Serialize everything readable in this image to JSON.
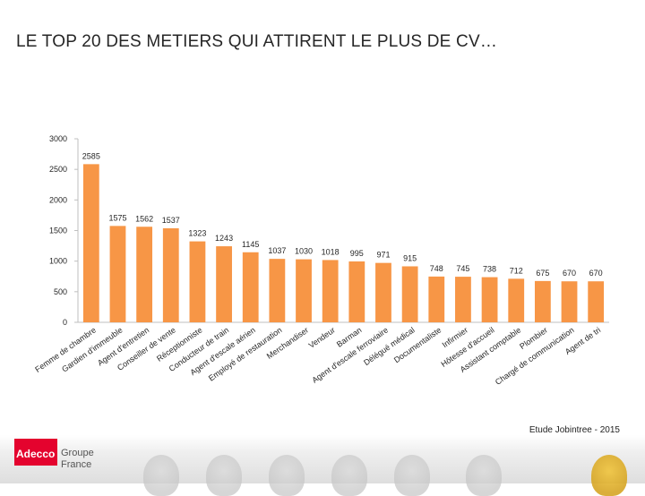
{
  "slide": {
    "title": "LE TOP 20 DES METIERS QUI ATTIRENT LE PLUS DE CV…",
    "source": "Etude Jobintree - 2015"
  },
  "logo": {
    "brand": "Adecco",
    "group": "Groupe",
    "country": "France"
  },
  "colors": {
    "bar": "#f79646",
    "axis": "#bfbfbf",
    "text": "#262626"
  },
  "chart_data": {
    "type": "bar",
    "title": "",
    "xlabel": "",
    "ylabel": "",
    "ylim": [
      0,
      3000
    ],
    "yticks": [
      0,
      500,
      1000,
      1500,
      2000,
      2500,
      3000
    ],
    "grid": false,
    "categories": [
      "Femme de chambre",
      "Gardien d'immeuble",
      "Agent d'entretien",
      "Conseiller de vente",
      "Réceptionniste",
      "Conducteur de train",
      "Agent d'escale aérien",
      "Employé de restauration",
      "Merchandiser",
      "Vendeur",
      "Barman",
      "Agent d'escale ferroviaire",
      "Délégué médical",
      "Documentaliste",
      "Infirmier",
      "Hôtesse d'accueil",
      "Assistant comptable",
      "Plombier",
      "Chargé de communication",
      "Agent de tri"
    ],
    "values": [
      2585,
      1575,
      1562,
      1537,
      1323,
      1243,
      1145,
      1037,
      1030,
      1018,
      995,
      971,
      915,
      748,
      745,
      738,
      712,
      675,
      670,
      670
    ]
  }
}
